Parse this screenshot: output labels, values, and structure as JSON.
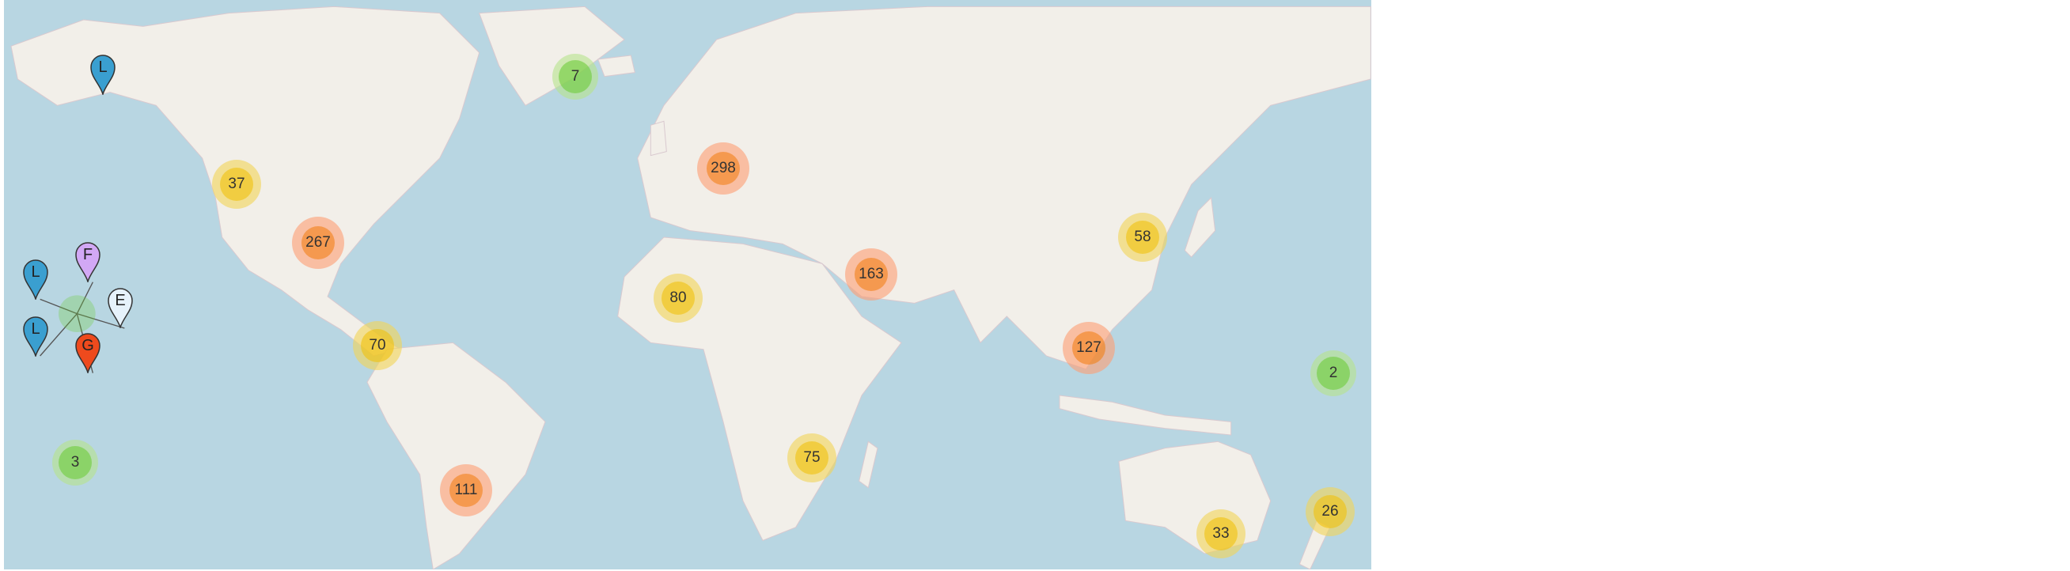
{
  "colors": {
    "ocean": "#b8d6e2",
    "land": "#f2efe9",
    "cluster_small": "#6ecc39",
    "cluster_medium": "#f0c20c",
    "cluster_large": "#f18017"
  },
  "clusters": [
    {
      "label": "7",
      "size": "small"
    },
    {
      "label": "37",
      "size": "medium"
    },
    {
      "label": "298",
      "size": "large"
    },
    {
      "label": "267",
      "size": "large"
    },
    {
      "label": "58",
      "size": "medium"
    },
    {
      "label": "163",
      "size": "large"
    },
    {
      "label": "80",
      "size": "medium"
    },
    {
      "label": "70",
      "size": "medium"
    },
    {
      "label": "127",
      "size": "large"
    },
    {
      "label": "2",
      "size": "small"
    },
    {
      "label": "3",
      "size": "small"
    },
    {
      "label": "75",
      "size": "medium"
    },
    {
      "label": "111",
      "size": "large"
    },
    {
      "label": "26",
      "size": "medium"
    },
    {
      "label": "33",
      "size": "medium"
    }
  ],
  "markers": [
    {
      "label": "L",
      "color": "#3a9fd0",
      "icon": "map-pin-icon"
    },
    {
      "label": "L",
      "color": "#3a9fd0",
      "icon": "map-pin-icon"
    },
    {
      "label": "F",
      "color": "#d2a8f5",
      "icon": "map-pin-icon"
    },
    {
      "label": "E",
      "color": "#e6f2fb",
      "icon": "map-pin-icon"
    },
    {
      "label": "L",
      "color": "#3a9fd0",
      "icon": "map-pin-icon"
    },
    {
      "label": "G",
      "color": "#ee4a1d",
      "icon": "map-pin-icon"
    }
  ]
}
